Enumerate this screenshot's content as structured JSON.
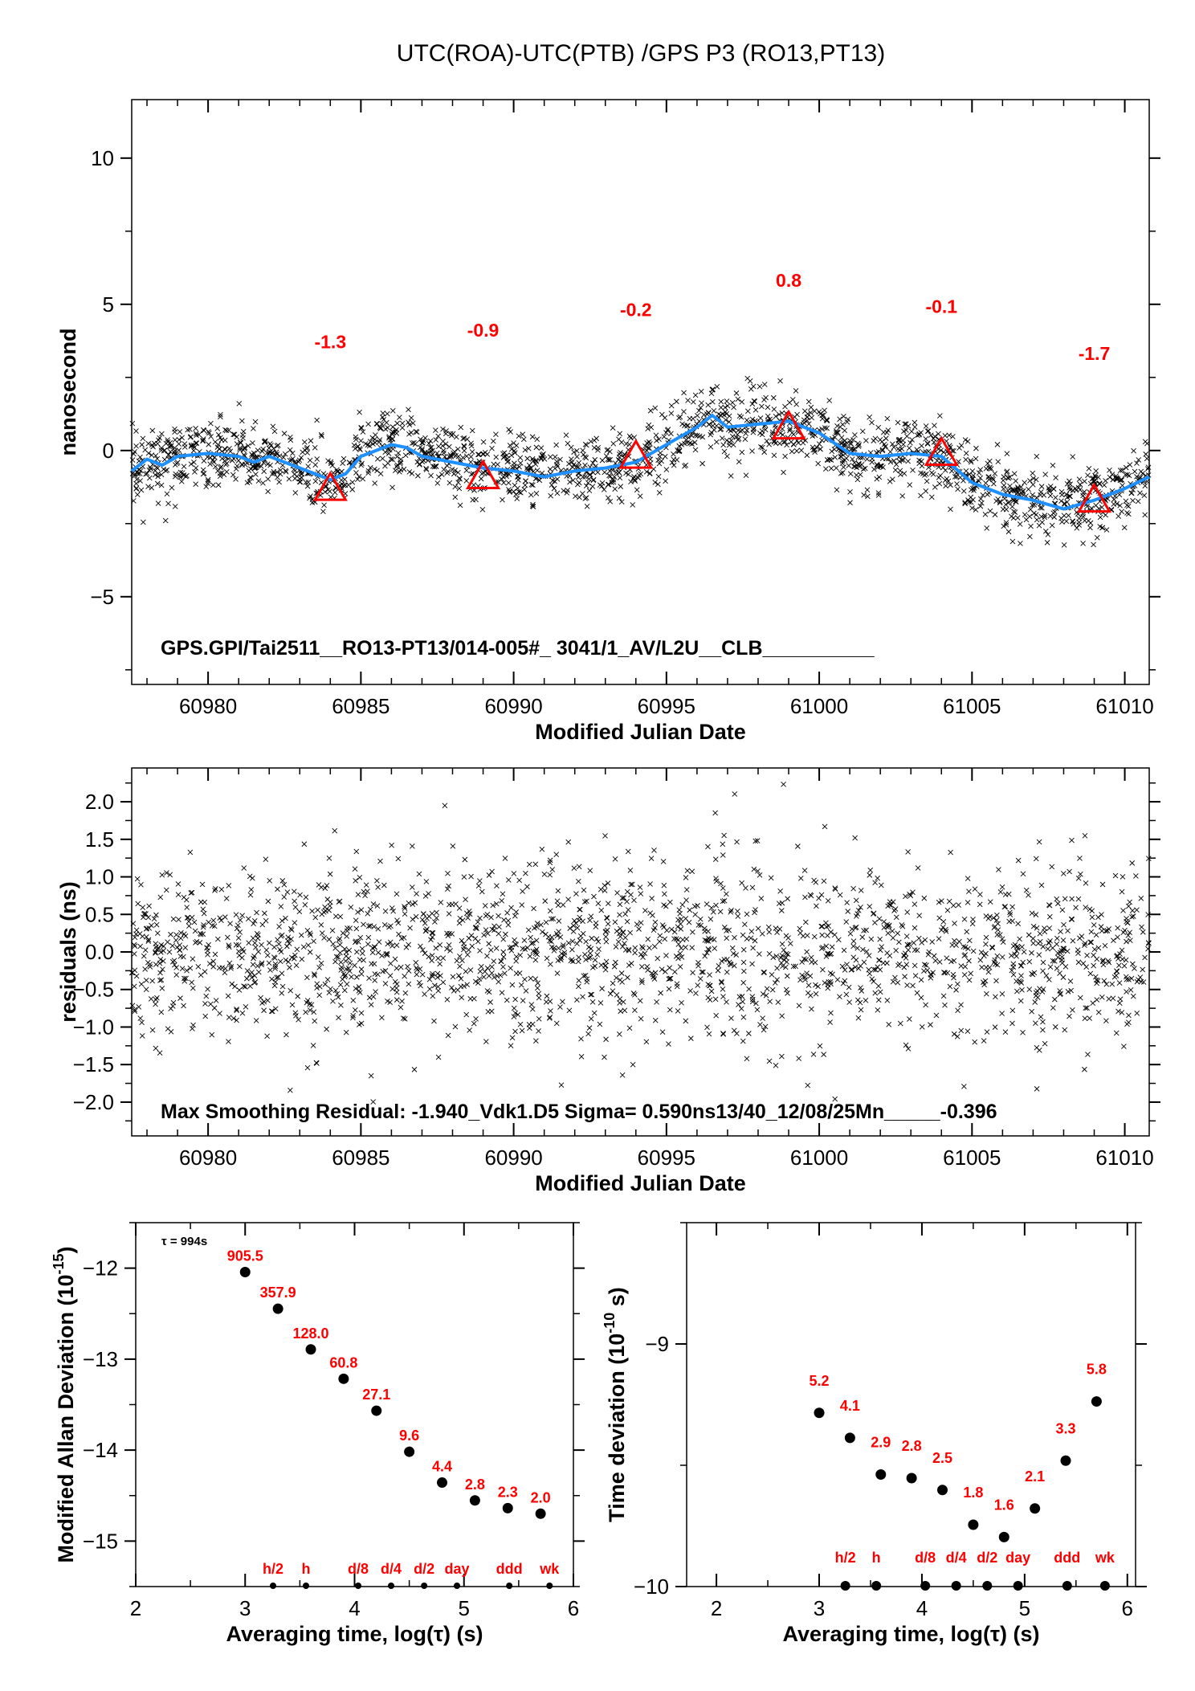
{
  "title": "UTC(ROA)-UTC(PTB)  /GPS  P3  (RO13,PT13)",
  "colors": {
    "smooth_line": "#1e90ff",
    "triangles": "#ff0000",
    "labels": "#ff0000",
    "points": "#000000"
  },
  "chart_data": [
    {
      "id": "offset",
      "type": "scatter",
      "xlabel": "Modified Julian Date",
      "ylabel": "nanosecond",
      "xlim": [
        60977.5,
        61010.8
      ],
      "ylim": [
        -8,
        12
      ],
      "xticks": [
        60980,
        60985,
        60990,
        60995,
        61000,
        61005,
        61010
      ],
      "yticks": [
        10,
        5,
        0,
        -5
      ],
      "ytick_labels": [
        "10",
        "5",
        "0",
        "−5"
      ],
      "annotation": "GPS.GPI/Tai2511__RO13-PT13/014-005#_  3041/1_AV/L2U__CLB__________",
      "smoothed_curve": {
        "x": [
          60977.5,
          60978,
          60978.5,
          60979,
          60980,
          60981,
          60981.5,
          60982,
          60983,
          60984,
          60984.5,
          60985,
          60986,
          60986.5,
          60987,
          60988,
          60989,
          60990,
          60991,
          60992,
          60993,
          60994,
          60995,
          60996,
          60996.5,
          60997,
          60998,
          60999,
          61000,
          61001,
          61002,
          61003,
          61004,
          61005,
          61006,
          61007,
          61008,
          61009,
          61010,
          61010.8
        ],
        "y": [
          -0.7,
          -0.3,
          -0.5,
          -0.2,
          -0.1,
          -0.2,
          -0.4,
          -0.2,
          -0.6,
          -1.0,
          -0.8,
          -0.2,
          0.2,
          0.1,
          -0.2,
          -0.4,
          -0.6,
          -0.7,
          -0.9,
          -0.7,
          -0.6,
          -0.4,
          0.2,
          0.8,
          1.2,
          0.8,
          0.9,
          1.0,
          0.6,
          -0.1,
          -0.2,
          -0.1,
          -0.2,
          -1.1,
          -1.5,
          -1.7,
          -2.0,
          -1.7,
          -1.3,
          -0.9
        ]
      },
      "markers": [
        {
          "x": 60984,
          "y": -1.3,
          "label": "-1.3"
        },
        {
          "x": 60989,
          "y": -0.9,
          "label": "-0.9"
        },
        {
          "x": 60994,
          "y": -0.2,
          "label": "-0.2"
        },
        {
          "x": 60999,
          "y": 0.8,
          "label": "0.8"
        },
        {
          "x": 61004,
          "y": -0.1,
          "label": "-0.1"
        },
        {
          "x": 61009,
          "y": -1.7,
          "label": "-1.7"
        }
      ]
    },
    {
      "id": "residuals",
      "type": "scatter",
      "xlabel": "Modified Julian Date",
      "ylabel": "residuals (ns)",
      "xlim": [
        60977.5,
        61010.8
      ],
      "ylim": [
        -2.45,
        2.45
      ],
      "xticks": [
        60980,
        60985,
        60990,
        60995,
        61000,
        61005,
        61010
      ],
      "yticks": [
        2.0,
        1.5,
        1.0,
        0.5,
        0.0,
        -0.5,
        -1.0,
        -1.5,
        -2.0
      ],
      "ytick_labels": [
        "2.0",
        "1.5",
        "1.0",
        "0.5",
        "0.0",
        "−0.5",
        "−1.0",
        "−1.5",
        "−2.0"
      ],
      "sigma_ns": 0.59,
      "annotation": "Max Smoothing Residual: -1.940_Vdk1.D5  Sigma= 0.590ns13/40_12/08/25Mn_____-0.396"
    },
    {
      "id": "mdev",
      "type": "scatter",
      "xlabel": "Averaging time, log(τ) (s)",
      "ylabel": "Modified Allan Deviation (10",
      "ylabel_sup": "-15",
      "ylabel_end": ")",
      "xlim": [
        2,
        6
      ],
      "ylim": [
        -15.5,
        -11.5
      ],
      "xticks": [
        2,
        3,
        4,
        5,
        6
      ],
      "yticks": [
        -12,
        -13,
        -14,
        -15
      ],
      "ytick_labels": [
        "−12",
        "−13",
        "−14",
        "−15"
      ],
      "tau0_label": "τ = 994s",
      "x": [
        3.0,
        3.3,
        3.6,
        3.9,
        4.2,
        4.5,
        4.8,
        5.1,
        5.4,
        5.7
      ],
      "y": [
        -12.043,
        -12.446,
        -12.893,
        -13.216,
        -13.567,
        -14.018,
        -14.357,
        -14.553,
        -14.638,
        -14.699
      ],
      "labels": [
        "905.5",
        "357.9",
        "128.0",
        "60.8",
        "27.1",
        "9.6",
        "4.4",
        "2.8",
        "2.3",
        "2.0"
      ],
      "time_markers": [
        {
          "x": 3.255,
          "label": "h/2"
        },
        {
          "x": 3.556,
          "label": "h"
        },
        {
          "x": 4.033,
          "label": "d/8"
        },
        {
          "x": 4.334,
          "label": "d/4"
        },
        {
          "x": 4.636,
          "label": "d/2"
        },
        {
          "x": 4.936,
          "label": "day"
        },
        {
          "x": 5.414,
          "label": "ddd"
        },
        {
          "x": 5.782,
          "label": "wk"
        }
      ]
    },
    {
      "id": "tdev",
      "type": "scatter",
      "xlabel": "Averaging time, log(τ) (s)",
      "ylabel": "Time deviation (10",
      "ylabel_sup": "-10",
      "ylabel_end": " s)",
      "xlim": [
        1.71,
        6.08
      ],
      "ylim": [
        -10,
        -8.5
      ],
      "xticks": [
        2,
        3,
        4,
        5,
        6
      ],
      "yticks": [
        -9,
        -10
      ],
      "ytick_labels": [
        "−9",
        "−10"
      ],
      "x": [
        3.0,
        3.3,
        3.6,
        3.9,
        4.2,
        4.5,
        4.8,
        5.1,
        5.4,
        5.7
      ],
      "y": [
        -9.284,
        -9.387,
        -9.538,
        -9.553,
        -9.602,
        -9.745,
        -9.796,
        -9.678,
        -9.481,
        -9.237
      ],
      "labels": [
        "5.2",
        "4.1",
        "2.9",
        "2.8",
        "2.5",
        "1.8",
        "1.6",
        "2.1",
        "3.3",
        "5.8"
      ],
      "time_markers": [
        {
          "x": 3.255,
          "label": "h/2"
        },
        {
          "x": 3.556,
          "label": "h"
        },
        {
          "x": 4.033,
          "label": "d/8"
        },
        {
          "x": 4.334,
          "label": "d/4"
        },
        {
          "x": 4.636,
          "label": "d/2"
        },
        {
          "x": 4.936,
          "label": "day"
        },
        {
          "x": 5.414,
          "label": "ddd"
        },
        {
          "x": 5.782,
          "label": "wk"
        }
      ]
    }
  ]
}
